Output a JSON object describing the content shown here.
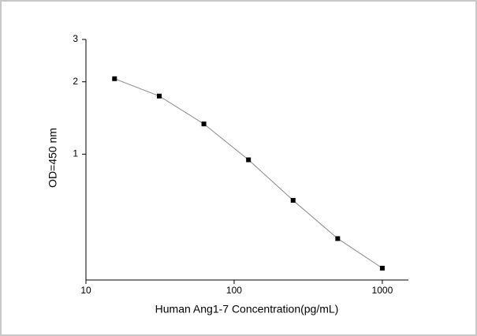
{
  "chart_data": {
    "type": "line",
    "x_label": "Human Ang1-7 Concentration(pg/mL)",
    "y_label": "OD=450 nm",
    "x": [
      15.6,
      31.25,
      62.5,
      125,
      250,
      500,
      1000
    ],
    "series": [
      {
        "color": "#000000",
        "values": [
          2.06,
          1.745,
          1.336,
          0.948,
          0.643,
          0.446,
          0.336
        ]
      }
    ],
    "xlim": [
      10,
      1500
    ],
    "ylim": [
      0.3,
      3
    ],
    "xticks": [
      10,
      100,
      1000
    ],
    "yticks": [
      1,
      2,
      3
    ],
    "xlog": true,
    "ylog": true,
    "markers": true,
    "line_color": "#888888"
  }
}
